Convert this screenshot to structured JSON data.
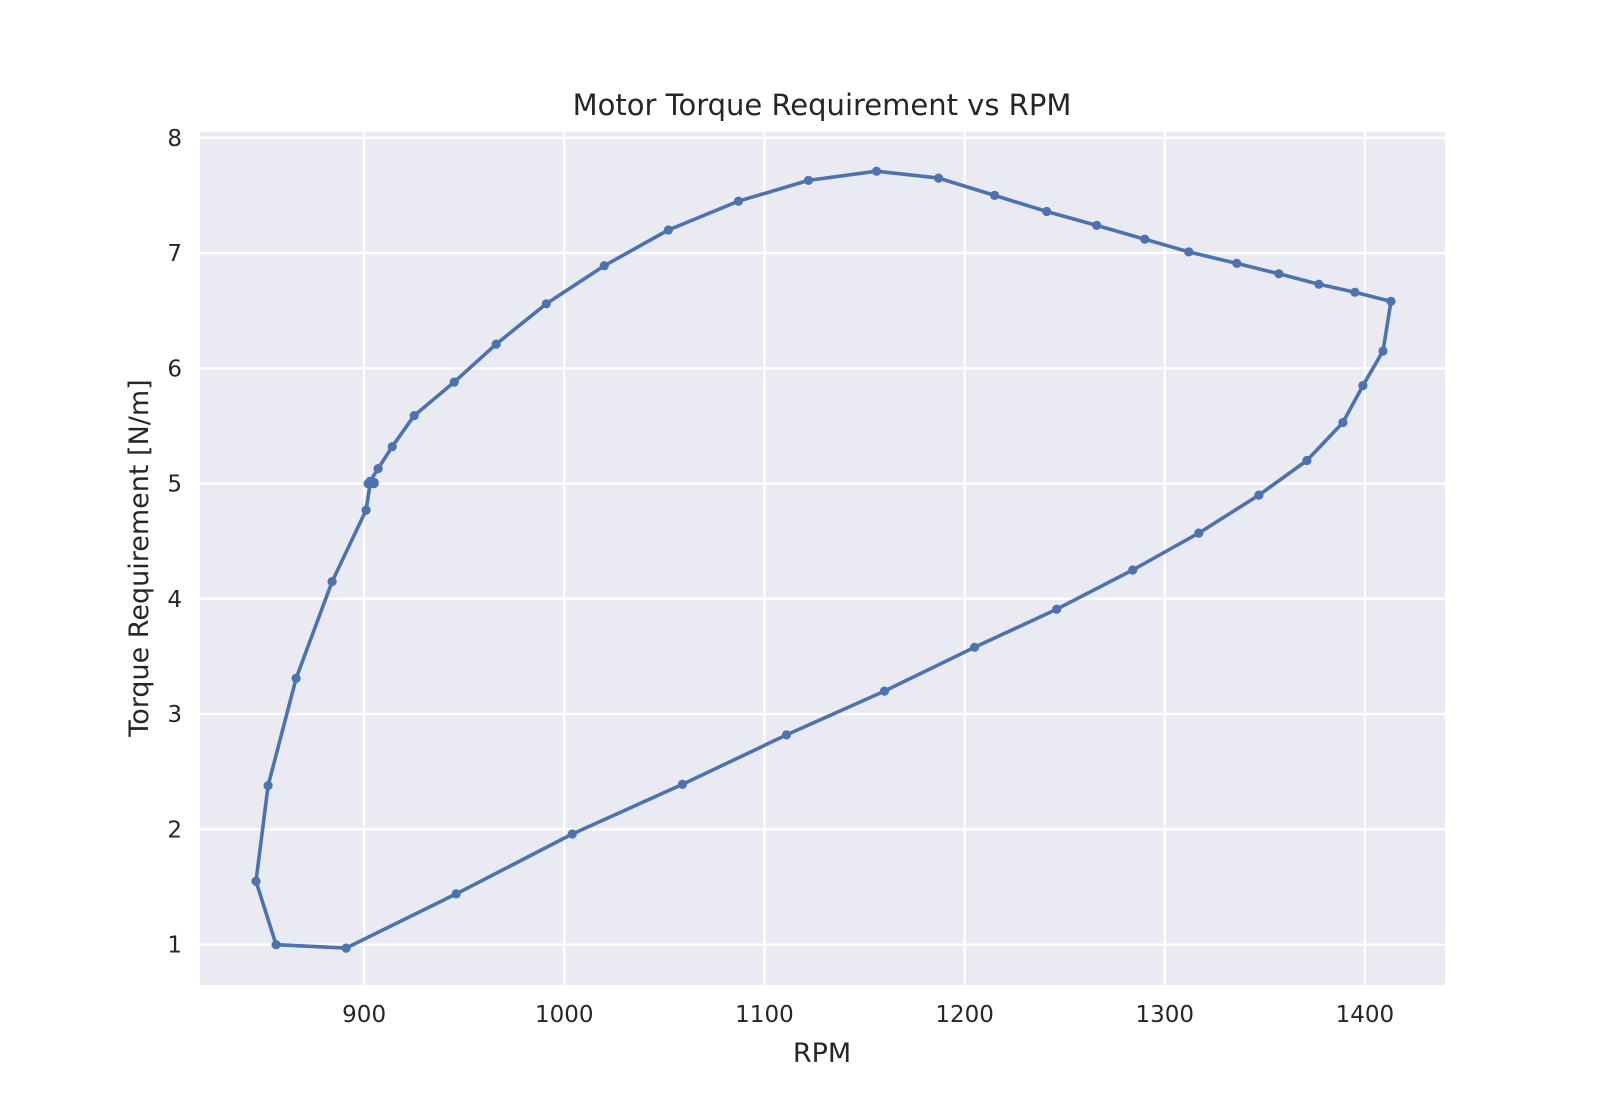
{
  "chart_data": {
    "type": "line",
    "title": "Motor Torque Requirement vs RPM",
    "xlabel": "RPM",
    "ylabel": "Torque Requirement [N/m]",
    "xlim": [
      818,
      1440
    ],
    "ylim": [
      0.65,
      8.05
    ],
    "xticks": [
      900,
      1000,
      1100,
      1200,
      1300,
      1400
    ],
    "yticks": [
      1,
      2,
      3,
      4,
      5,
      6,
      7,
      8
    ],
    "grid": true,
    "background": "#eaeaf2",
    "grid_color": "#ffffff",
    "series": [
      {
        "color": "#4c72b0",
        "marker": "circle",
        "x": [
          905,
          902,
          903,
          907,
          914,
          925,
          945,
          966,
          991,
          1020,
          1052,
          1087,
          1122,
          1156,
          1187,
          1215,
          1241,
          1266,
          1290,
          1312,
          1336,
          1357,
          1377,
          1395,
          1413,
          1409,
          1399,
          1389,
          1371,
          1347,
          1317,
          1284,
          1246,
          1205,
          1160,
          1111,
          1059,
          1004,
          946,
          891,
          856,
          846,
          852,
          866,
          884,
          901,
          903,
          905
        ],
        "y": [
          5.0,
          5.0,
          5.02,
          5.13,
          5.32,
          5.59,
          5.88,
          6.21,
          6.56,
          6.89,
          7.2,
          7.45,
          7.63,
          7.71,
          7.65,
          7.5,
          7.36,
          7.24,
          7.12,
          7.01,
          6.91,
          6.82,
          6.73,
          6.66,
          6.58,
          6.15,
          5.85,
          5.53,
          5.2,
          4.9,
          4.57,
          4.25,
          3.91,
          3.58,
          3.2,
          2.82,
          2.39,
          1.96,
          1.44,
          0.97,
          1.0,
          1.55,
          2.38,
          3.31,
          4.15,
          4.77,
          5.0,
          5.01
        ]
      }
    ]
  }
}
